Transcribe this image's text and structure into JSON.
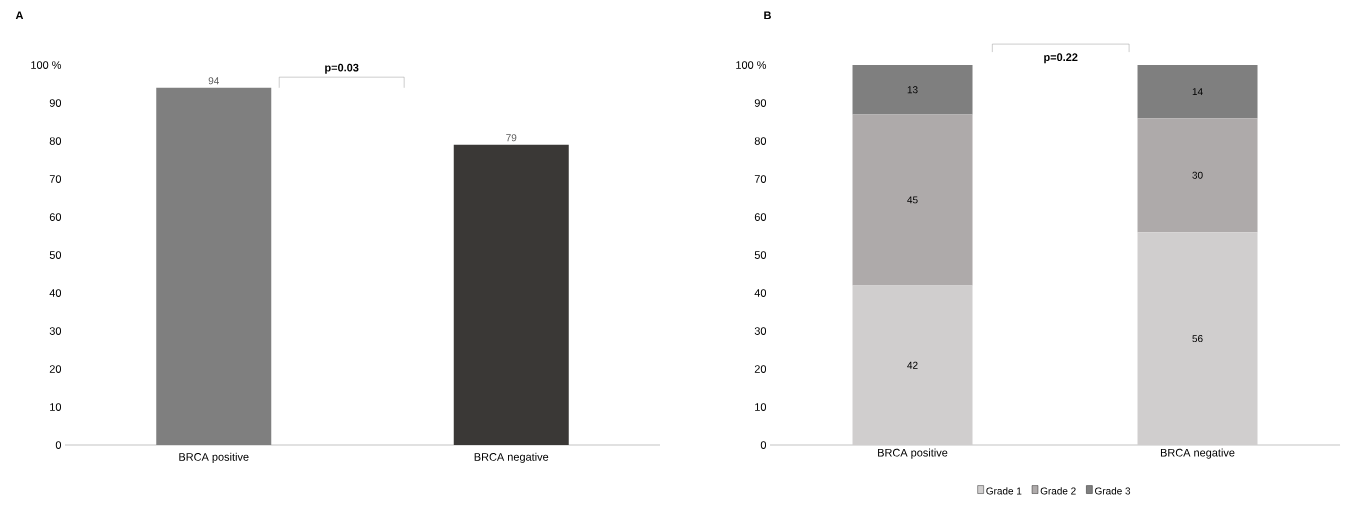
{
  "chart_data": [
    {
      "type": "bar",
      "title": "A",
      "categories": [
        "BRCA positive",
        "BRCA negative"
      ],
      "values": [
        94,
        79
      ],
      "colors": [
        "#7f7f7f",
        "#3a3836"
      ],
      "ylim": [
        0,
        100
      ],
      "yticks": [
        0,
        10,
        20,
        30,
        40,
        50,
        60,
        70,
        80,
        90,
        {
          "value": 100,
          "label": "100 %"
        }
      ],
      "data_labels": true,
      "annotations": [
        "p=0.03"
      ]
    },
    {
      "type": "bar",
      "title": "B",
      "stacked": true,
      "categories": [
        "BRCA positive",
        "BRCA negative"
      ],
      "series": [
        {
          "name": "Grade 1",
          "color": "#d0cece",
          "values": [
            42,
            56
          ]
        },
        {
          "name": "Grade 2",
          "color": "#aeaaaa",
          "values": [
            45,
            30
          ]
        },
        {
          "name": "Grade 3",
          "color": "#7f7f7f",
          "values": [
            13,
            14
          ]
        }
      ],
      "ylim": [
        0,
        100
      ],
      "yticks": [
        0,
        10,
        20,
        30,
        40,
        50,
        60,
        70,
        80,
        90,
        {
          "value": 100,
          "label": "100 %"
        }
      ],
      "data_labels": true,
      "legend": "bottom",
      "annotations": [
        "p=0.22"
      ]
    }
  ]
}
